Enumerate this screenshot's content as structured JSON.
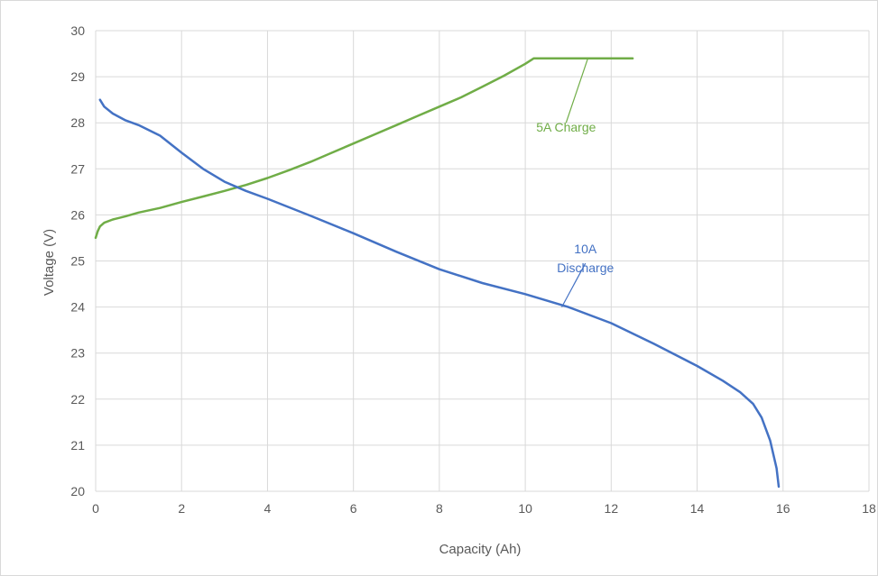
{
  "chart_data": {
    "type": "line",
    "xlabel": "Capacity (Ah)",
    "ylabel": "Voltage (V)",
    "xlim": [
      0,
      18
    ],
    "ylim": [
      20,
      30
    ],
    "x_ticks": [
      "0",
      "2",
      "4",
      "6",
      "8",
      "10",
      "12",
      "14",
      "16",
      "18"
    ],
    "y_ticks": [
      "20",
      "21",
      "22",
      "23",
      "24",
      "25",
      "26",
      "27",
      "28",
      "29",
      "30"
    ],
    "grid": true,
    "series": [
      {
        "color": "#70ad47",
        "points": [
          [
            0.0,
            25.5
          ],
          [
            0.05,
            25.65
          ],
          [
            0.1,
            25.75
          ],
          [
            0.2,
            25.83
          ],
          [
            0.4,
            25.9
          ],
          [
            0.7,
            25.97
          ],
          [
            1.0,
            26.05
          ],
          [
            1.5,
            26.15
          ],
          [
            2.0,
            26.28
          ],
          [
            2.5,
            26.4
          ],
          [
            3.0,
            26.52
          ],
          [
            3.5,
            26.65
          ],
          [
            4.0,
            26.8
          ],
          [
            4.5,
            26.97
          ],
          [
            5.0,
            27.15
          ],
          [
            5.5,
            27.35
          ],
          [
            6.0,
            27.55
          ],
          [
            6.5,
            27.75
          ],
          [
            7.0,
            27.95
          ],
          [
            7.5,
            28.15
          ],
          [
            8.0,
            28.35
          ],
          [
            8.5,
            28.55
          ],
          [
            9.0,
            28.78
          ],
          [
            9.5,
            29.02
          ],
          [
            10.0,
            29.28
          ],
          [
            10.2,
            29.4
          ],
          [
            11.0,
            29.4
          ],
          [
            12.0,
            29.4
          ],
          [
            12.5,
            29.4
          ]
        ]
      },
      {
        "color": "#4472c4",
        "points": [
          [
            0.1,
            28.5
          ],
          [
            0.2,
            28.35
          ],
          [
            0.4,
            28.2
          ],
          [
            0.7,
            28.05
          ],
          [
            1.0,
            27.95
          ],
          [
            1.5,
            27.72
          ],
          [
            2.0,
            27.35
          ],
          [
            2.5,
            27.0
          ],
          [
            3.0,
            26.72
          ],
          [
            3.5,
            26.52
          ],
          [
            4.0,
            26.35
          ],
          [
            5.0,
            25.98
          ],
          [
            6.0,
            25.6
          ],
          [
            7.0,
            25.2
          ],
          [
            8.0,
            24.82
          ],
          [
            9.0,
            24.52
          ],
          [
            10.0,
            24.28
          ],
          [
            11.0,
            24.0
          ],
          [
            12.0,
            23.65
          ],
          [
            13.0,
            23.2
          ],
          [
            14.0,
            22.72
          ],
          [
            14.6,
            22.4
          ],
          [
            15.0,
            22.15
          ],
          [
            15.3,
            21.9
          ],
          [
            15.5,
            21.6
          ],
          [
            15.7,
            21.1
          ],
          [
            15.85,
            20.5
          ],
          [
            15.9,
            20.1
          ]
        ]
      }
    ],
    "annotations": [
      {
        "text_lines": [
          "5A Charge"
        ],
        "color": "#70ad47",
        "leader_from": [
          11.45,
          29.38
        ],
        "leader_to": [
          10.95,
          28.0
        ]
      },
      {
        "text_lines": [
          "10A",
          "Discharge"
        ],
        "color": "#4472c4",
        "leader_from": [
          10.85,
          24.0
        ],
        "leader_to": [
          11.4,
          24.95
        ]
      }
    ]
  }
}
